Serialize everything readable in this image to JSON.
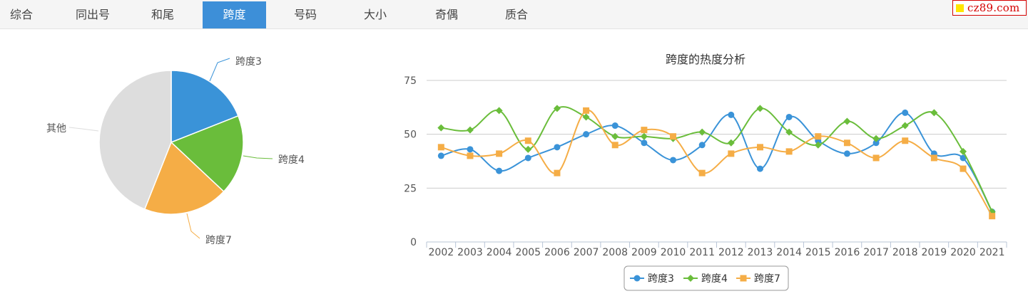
{
  "tabs": [
    {
      "label": "综合",
      "active": false
    },
    {
      "label": "同出号",
      "active": false
    },
    {
      "label": "和尾",
      "active": false
    },
    {
      "label": "跨度",
      "active": true
    },
    {
      "label": "号码",
      "active": false
    },
    {
      "label": "大小",
      "active": false
    },
    {
      "label": "奇偶",
      "active": false
    },
    {
      "label": "质合",
      "active": false
    }
  ],
  "logo": {
    "text": "cz89.com"
  },
  "colors": {
    "series1": "#3a93d8",
    "series2": "#6abd3b",
    "series3": "#f5ad46",
    "other": "#dddddd",
    "tab_active": "#3d8fd8"
  },
  "chart_data": [
    {
      "type": "pie",
      "slices": [
        {
          "label": "跨度3",
          "value": 19
        },
        {
          "label": "跨度4",
          "value": 18
        },
        {
          "label": "跨度7",
          "value": 19
        },
        {
          "label": "其他",
          "value": 44
        }
      ]
    },
    {
      "type": "line",
      "title": "跨度的热度分析",
      "x": [
        "2002",
        "2003",
        "2004",
        "2005",
        "2006",
        "2007",
        "2008",
        "2009",
        "2010",
        "2011",
        "2012",
        "2013",
        "2014",
        "2015",
        "2016",
        "2017",
        "2018",
        "2019",
        "2020",
        "2021"
      ],
      "yticks": [
        0,
        25,
        50,
        75
      ],
      "ylim": [
        0,
        75
      ],
      "grid": true,
      "legend": "bottom-center",
      "series": [
        {
          "name": "跨度3",
          "marker": "circle",
          "values": [
            40,
            43,
            33,
            39,
            44,
            50,
            54,
            46,
            38,
            45,
            59,
            34,
            58,
            47,
            41,
            46,
            60,
            41,
            39,
            14
          ]
        },
        {
          "name": "跨度4",
          "marker": "diamond",
          "values": [
            53,
            52,
            61,
            43,
            62,
            58,
            49,
            49,
            48,
            51,
            46,
            62,
            51,
            45,
            56,
            48,
            54,
            60,
            42,
            14
          ]
        },
        {
          "name": "跨度7",
          "marker": "square",
          "values": [
            44,
            40,
            41,
            47,
            32,
            61,
            45,
            52,
            49,
            32,
            41,
            44,
            42,
            49,
            46,
            39,
            47,
            39,
            34,
            12
          ]
        }
      ]
    }
  ]
}
